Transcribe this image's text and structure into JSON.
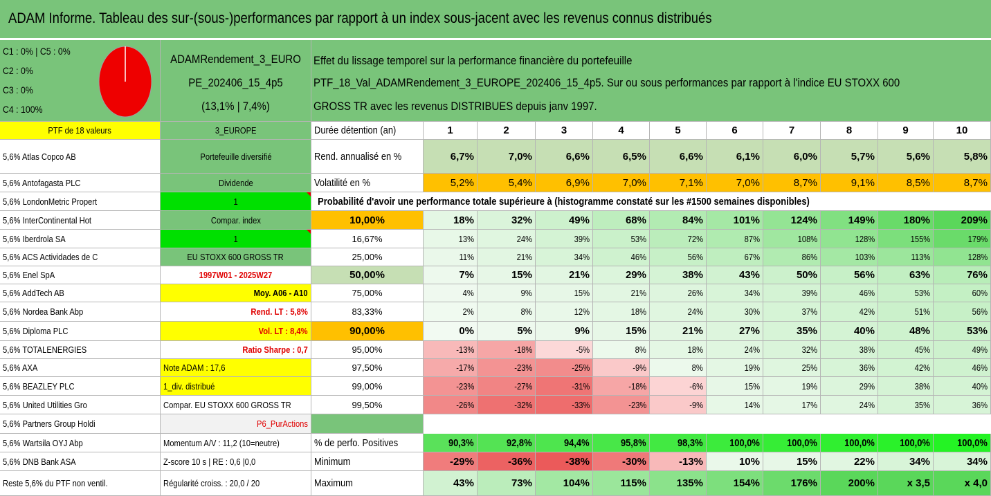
{
  "title": "ADAM Informe. Tableau des sur-(sous-)performances par rapport à un index sous-jacent avec les revenus connus distribués",
  "classes": [
    "C1 : 0% | C5 : 0%",
    "C2 : 0%",
    "C3 : 0%",
    "C4 : 100%"
  ],
  "pie_chart": {
    "C1": 0,
    "C2": 0,
    "C3": 0,
    "C4": 100,
    "C5": 0,
    "color": "#ee0000"
  },
  "fund": {
    "line1": "ADAMRendement_3_EURO",
    "line2": "PE_202406_15_4p5",
    "line3": "(13,1% | 7,4%)"
  },
  "description": {
    "line1": "Effet du lissage temporel sur la performance financière du portefeuille",
    "line2": "PTF_18_Val_ADAMRendement_3_EUROPE_202406_15_4p5. Sur ou sous performances par rapport à l'indice EU STOXX 600",
    "line3": "GROSS TR avec les revenus DISTRIBUES depuis janv 1997."
  },
  "portfolio_header": "PTF de 18 valeurs",
  "holdings": [
    "5,6% Atlas Copco AB",
    "5,6% Antofagasta PLC",
    "5,6% LondonMetric Propert",
    "5,6% InterContinental Hot",
    "5,6% Iberdrola SA",
    "5,6% ACS Actividades de C",
    "5,6% Enel SpA",
    "5,6% AddTech AB",
    "5,6% Nordea Bank Abp",
    "5,6% Diploma PLC",
    "5,6% TOTALENERGIES",
    "5,6% AXA",
    "5,6% BEAZLEY PLC",
    "5,6% United Utilities Gro",
    "5,6% Partners Group Holdi",
    "5,6% Wartsila OYJ Abp",
    "5,6% DNB Bank ASA",
    "Reste 5,6% du PTF non ventil."
  ],
  "side": [
    "3_EUROPE",
    "Portefeuille diversifié",
    "Dividende",
    "1",
    "Compar. index",
    "1",
    "EU STOXX 600 GROSS TR",
    "1997W01 - 2025W27",
    "Moy. A06 - A10",
    "Rend. LT : 5,8%",
    "Vol. LT : 8,4%",
    "Ratio Sharpe : 0,7",
    "Note ADAM : 17,6",
    "1_div. distribué",
    "Compar. EU STOXX 600 GROSS TR",
    "P6_PurActions",
    "Momentum A/V : 11,2 (10=neutre)",
    "Z-score 10 s | RE : 0,6 |0,0",
    "Régularité croiss. : 20,0 / 20"
  ],
  "labels": {
    "duration": "Durée détention (an)",
    "annualized": "Rend. annualisé en %",
    "volatility": "Volatilité en %",
    "probability": "Probabilité d'avoir une performance totale supérieure à (histogramme constaté sur les #1500 semaines disponibles)",
    "positive": "% de perfo. Positives",
    "minimum": "Minimum",
    "maximum": "Maximum"
  },
  "years": [
    "1",
    "2",
    "3",
    "4",
    "5",
    "6",
    "7",
    "8",
    "9",
    "10"
  ],
  "annualized": [
    "6,7%",
    "7,0%",
    "6,6%",
    "6,5%",
    "6,6%",
    "6,1%",
    "6,0%",
    "5,7%",
    "5,6%",
    "5,8%"
  ],
  "volatility": [
    "5,2%",
    "5,4%",
    "6,9%",
    "7,0%",
    "7,1%",
    "7,0%",
    "8,7%",
    "9,1%",
    "8,5%",
    "8,7%"
  ],
  "probability_rows": [
    {
      "threshold": "10,00%",
      "values": [
        "18%",
        "32%",
        "49%",
        "68%",
        "84%",
        "101%",
        "124%",
        "149%",
        "180%",
        "209%"
      ]
    },
    {
      "threshold": "16,67%",
      "values": [
        "13%",
        "24%",
        "39%",
        "53%",
        "72%",
        "87%",
        "108%",
        "128%",
        "155%",
        "179%"
      ]
    },
    {
      "threshold": "25,00%",
      "values": [
        "11%",
        "21%",
        "34%",
        "46%",
        "56%",
        "67%",
        "86%",
        "103%",
        "113%",
        "128%"
      ]
    },
    {
      "threshold": "50,00%",
      "values": [
        "7%",
        "15%",
        "21%",
        "29%",
        "38%",
        "43%",
        "50%",
        "56%",
        "63%",
        "76%"
      ]
    },
    {
      "threshold": "75,00%",
      "values": [
        "4%",
        "9%",
        "15%",
        "21%",
        "26%",
        "34%",
        "39%",
        "46%",
        "53%",
        "60%"
      ]
    },
    {
      "threshold": "83,33%",
      "values": [
        "2%",
        "8%",
        "12%",
        "18%",
        "24%",
        "30%",
        "37%",
        "42%",
        "51%",
        "56%"
      ]
    },
    {
      "threshold": "90,00%",
      "values": [
        "0%",
        "5%",
        "9%",
        "15%",
        "21%",
        "27%",
        "35%",
        "40%",
        "48%",
        "53%"
      ]
    },
    {
      "threshold": "95,00%",
      "values": [
        "-13%",
        "-18%",
        "-5%",
        "8%",
        "18%",
        "24%",
        "32%",
        "38%",
        "45%",
        "49%"
      ]
    },
    {
      "threshold": "97,50%",
      "values": [
        "-17%",
        "-23%",
        "-25%",
        "-9%",
        "8%",
        "19%",
        "25%",
        "36%",
        "42%",
        "46%"
      ]
    },
    {
      "threshold": "99,00%",
      "values": [
        "-23%",
        "-27%",
        "-31%",
        "-18%",
        "-6%",
        "15%",
        "19%",
        "29%",
        "38%",
        "40%"
      ]
    },
    {
      "threshold": "99,50%",
      "values": [
        "-26%",
        "-32%",
        "-33%",
        "-23%",
        "-9%",
        "14%",
        "17%",
        "24%",
        "35%",
        "36%"
      ]
    }
  ],
  "positive": [
    "90,3%",
    "92,8%",
    "94,4%",
    "95,8%",
    "98,3%",
    "100,0%",
    "100,0%",
    "100,0%",
    "100,0%",
    "100,0%"
  ],
  "minimum": [
    "-29%",
    "-36%",
    "-38%",
    "-30%",
    "-13%",
    "10%",
    "15%",
    "22%",
    "34%",
    "34%"
  ],
  "maximum": [
    "43%",
    "73%",
    "104%",
    "115%",
    "135%",
    "154%",
    "176%",
    "200%",
    "x 3,5",
    "x 4,0"
  ],
  "colors": {
    "header_green": "#79c47a",
    "yellow": "#ffff00",
    "bright_green": "#00e000",
    "orange": "#ffc000",
    "light_green": "#c6dfb4",
    "accent_red": "#e00000"
  }
}
